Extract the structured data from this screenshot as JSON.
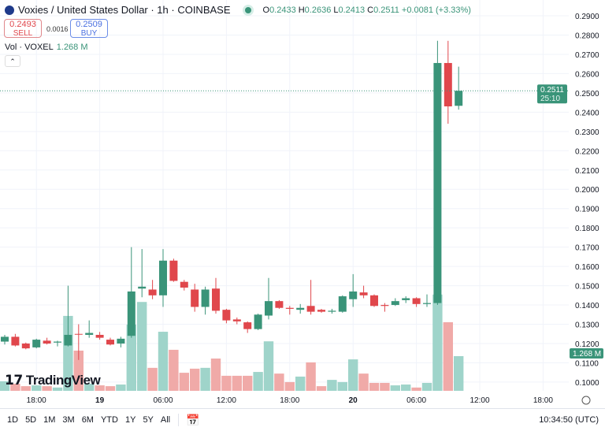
{
  "header": {
    "title": "Voxies / United States Dollar · 1h · COINBASE",
    "ohlc": [
      {
        "k": "O",
        "v": "0.2433"
      },
      {
        "k": "H",
        "v": "0.2636"
      },
      {
        "k": "L",
        "v": "0.2413"
      },
      {
        "k": "C",
        "v": "0.2511"
      },
      {
        "k": "",
        "v": "+0.0081 (+3.33%)"
      }
    ]
  },
  "trade": {
    "sell_price": "0.2493",
    "sell_label": "SELL",
    "spread": "0.0016",
    "buy_price": "0.2509",
    "buy_label": "BUY"
  },
  "volume_legend": {
    "label": "Vol · VOXEL",
    "value": "1.268 M"
  },
  "collapse_icon": "chevron-up-icon",
  "logo_text": "TradingView",
  "bottom": {
    "ranges": [
      "1D",
      "5D",
      "1M",
      "3M",
      "6M",
      "YTD",
      "1Y",
      "5Y",
      "All"
    ],
    "time": "10:34:50 (UTC)"
  },
  "colors": {
    "up": "#3a9479",
    "down": "#e0474c",
    "vol_up": "#9fd4ca",
    "vol_down": "#f0aaa8"
  },
  "chart_data": {
    "type": "candlestick",
    "interval": "1h",
    "ylim": [
      0.095,
      0.29
    ],
    "price_ticks": [
      "0.2900",
      "0.2800",
      "0.2700",
      "0.2600",
      "0.2500",
      "0.2400",
      "0.2300",
      "0.2200",
      "0.2100",
      "0.2000",
      "0.1900",
      "0.1800",
      "0.1700",
      "0.1600",
      "0.1500",
      "0.1400",
      "0.1300",
      "0.1200",
      "0.1100",
      "0.1000"
    ],
    "time_ticks": [
      {
        "label": "18:00",
        "hour": 3
      },
      {
        "label": "19",
        "hour": 9
      },
      {
        "label": "06:00",
        "hour": 15
      },
      {
        "label": "12:00",
        "hour": 21
      },
      {
        "label": "18:00",
        "hour": 27
      },
      {
        "label": "20",
        "hour": 33
      },
      {
        "label": "06:00",
        "hour": 39
      },
      {
        "label": "12:00",
        "hour": 45
      },
      {
        "label": "18:00",
        "hour": 51
      }
    ],
    "last_price": "0.2511",
    "countdown": "25:10",
    "last_volume": "1.268 M",
    "candles": [
      [
        0.121,
        0.1245,
        0.1195,
        0.1235,
        0.35
      ],
      [
        0.1235,
        0.125,
        0.1185,
        0.119,
        0.26
      ],
      [
        0.12,
        0.1205,
        0.117,
        0.1175,
        0.17
      ],
      [
        0.118,
        0.1225,
        0.1175,
        0.122,
        0.2
      ],
      [
        0.1215,
        0.123,
        0.1195,
        0.12,
        0.17
      ],
      [
        0.1205,
        0.1215,
        0.1185,
        0.121,
        0.12
      ],
      [
        0.119,
        0.15,
        0.1185,
        0.1245,
        2.74
      ],
      [
        0.125,
        0.13,
        0.1115,
        0.1248,
        1.47
      ],
      [
        0.1245,
        0.132,
        0.123,
        0.1255,
        0.26
      ],
      [
        0.1245,
        0.126,
        0.122,
        0.123,
        0.2
      ],
      [
        0.122,
        0.123,
        0.119,
        0.1195,
        0.17
      ],
      [
        0.12,
        0.1235,
        0.118,
        0.1225,
        0.23
      ],
      [
        0.124,
        0.17,
        0.123,
        0.147,
        2.42
      ],
      [
        0.1485,
        0.169,
        0.144,
        0.1495,
        3.25
      ],
      [
        0.148,
        0.153,
        0.143,
        0.145,
        0.84
      ],
      [
        0.145,
        0.169,
        0.139,
        0.163,
        2.16
      ],
      [
        0.163,
        0.164,
        0.152,
        0.1525,
        1.5
      ],
      [
        0.152,
        0.153,
        0.1475,
        0.149,
        0.66
      ],
      [
        0.148,
        0.151,
        0.1365,
        0.139,
        0.81
      ],
      [
        0.139,
        0.1495,
        0.135,
        0.148,
        0.84
      ],
      [
        0.1485,
        0.154,
        0.1355,
        0.137,
        1.18
      ],
      [
        0.1375,
        0.138,
        0.1305,
        0.132,
        0.55
      ],
      [
        0.1325,
        0.1335,
        0.13,
        0.1315,
        0.55
      ],
      [
        0.131,
        0.1315,
        0.1255,
        0.1275,
        0.55
      ],
      [
        0.1275,
        0.1355,
        0.127,
        0.135,
        0.69
      ],
      [
        0.1345,
        0.154,
        0.1325,
        0.142,
        1.81
      ],
      [
        0.142,
        0.1425,
        0.138,
        0.1385,
        0.63
      ],
      [
        0.1385,
        0.1395,
        0.135,
        0.138,
        0.32
      ],
      [
        0.1375,
        0.1405,
        0.1355,
        0.1385,
        0.52
      ],
      [
        0.1395,
        0.153,
        0.135,
        0.1365,
        1.04
      ],
      [
        0.1375,
        0.138,
        0.136,
        0.1365,
        0.17
      ],
      [
        0.1365,
        0.138,
        0.1355,
        0.137,
        0.4
      ],
      [
        0.1365,
        0.145,
        0.136,
        0.1445,
        0.32
      ],
      [
        0.143,
        0.156,
        0.139,
        0.147,
        1.15
      ],
      [
        0.1465,
        0.15,
        0.1435,
        0.145,
        0.63
      ],
      [
        0.145,
        0.1455,
        0.139,
        0.1395,
        0.29
      ],
      [
        0.14,
        0.141,
        0.1365,
        0.1395,
        0.29
      ],
      [
        0.14,
        0.1435,
        0.1395,
        0.142,
        0.2
      ],
      [
        0.1425,
        0.1445,
        0.141,
        0.1435,
        0.23
      ],
      [
        0.1435,
        0.144,
        0.139,
        0.1405,
        0.12
      ],
      [
        0.1405,
        0.1455,
        0.139,
        0.141,
        0.29
      ],
      [
        0.141,
        0.277,
        0.14,
        0.2655,
        3.52
      ],
      [
        0.2655,
        0.277,
        0.234,
        0.243,
        2.51
      ],
      [
        0.2433,
        0.2636,
        0.2413,
        0.2511,
        1.268
      ]
    ]
  }
}
